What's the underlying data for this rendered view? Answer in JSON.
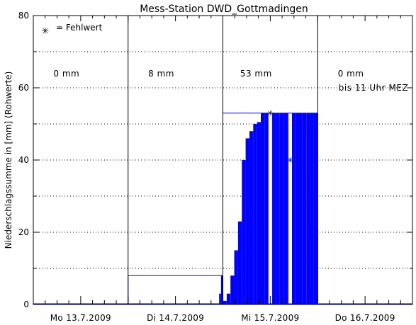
{
  "chart_data": {
    "type": "area",
    "title": "Mess-Station DWD_Gottmadingen",
    "ylabel": "Niederschlagssumme in [mm] (Rohwerte)",
    "xlabel": "",
    "ylim": [
      0,
      80
    ],
    "xlim": [
      0,
      4
    ],
    "yticks": [
      0,
      20,
      40,
      60,
      80
    ],
    "grid": true,
    "day_labels": [
      "Mo 13.7.2009",
      "Di 14.7.2009",
      "Mi 15.7.2009",
      "Do 16.7.2009"
    ],
    "day_boundaries": [
      1,
      2,
      3
    ],
    "legend": {
      "symbol": "✳",
      "text": "= Fehlwert",
      "position": "top-left"
    },
    "daily_totals": [
      {
        "text": "0 mm",
        "day": 0
      },
      {
        "text": "8 mm",
        "day": 1
      },
      {
        "text": "53 mm",
        "day": 2
      },
      {
        "text": "0 mm",
        "day": 3
      }
    ],
    "note": "bis 11 Uhr MEZ",
    "daily_sum_lines": [
      {
        "x0": 0,
        "x1": 1,
        "y": 0
      },
      {
        "x0": 1,
        "x1": 2,
        "y": 8
      },
      {
        "x0": 2,
        "x1": 3,
        "y": 53
      }
    ],
    "hourly_cumulative": {
      "x": [
        1.0,
        1.96,
        1.98,
        2.0,
        2.04,
        2.08,
        2.12,
        2.16,
        2.2,
        2.24,
        2.28,
        2.32,
        2.36,
        2.4,
        2.44,
        2.48,
        2.52,
        2.56,
        2.6,
        2.64,
        2.68,
        2.72,
        2.76,
        2.8,
        2.84,
        2.88,
        2.92,
        2.96,
        3.0
      ],
      "y": [
        0,
        3,
        8,
        1,
        3,
        8,
        15,
        23,
        40,
        46,
        48,
        50,
        50.5,
        53,
        53,
        53,
        53,
        53,
        53,
        53,
        53,
        53,
        53,
        53,
        53,
        53,
        53,
        53,
        53
      ]
    },
    "missing_values": [
      {
        "x": 2.71,
        "y": 40
      },
      {
        "x": 2.5,
        "y": 53
      }
    ],
    "colors": {
      "fill": "#0000ff",
      "line": "#0000ff",
      "axis": "#000000",
      "grid": "#000000"
    }
  }
}
